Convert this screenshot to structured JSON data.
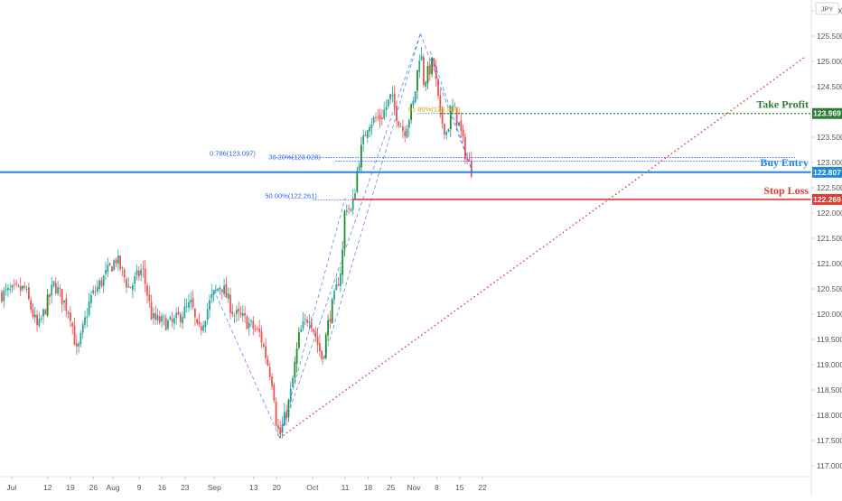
{
  "chart_data": {
    "type": "candlestick",
    "currency_badge": "JPY",
    "y_axis": {
      "ylim": [
        116.8,
        126.3
      ],
      "tick_labels": [
        "126.000",
        "125.500",
        "125.000",
        "124.500",
        "124.000",
        "123.500",
        "123.000",
        "122.500",
        "122.000",
        "121.500",
        "121.000",
        "120.500",
        "120.000",
        "119.500",
        "119.000",
        "118.500",
        "118.000",
        "117.500",
        "117.000"
      ]
    },
    "x_axis": {
      "tick_labels": [
        "Jul",
        "12",
        "19",
        "26",
        "Aug",
        "9",
        "16",
        "23",
        "Sep",
        "13",
        "20",
        "Oct",
        "11",
        "18",
        "25",
        "Nov",
        "8",
        "15",
        "22"
      ]
    },
    "price_tags": [
      {
        "label": "123.969",
        "color": "#2e7d32"
      },
      {
        "label": "122.807",
        "color": "#1e88e5"
      },
      {
        "label": "122.269",
        "color": "#e53935"
      }
    ],
    "annotations": {
      "take_profit": "Take Profit",
      "buy_entry": "Buy Entry",
      "stop_loss": "Stop Loss"
    },
    "fib_labels": [
      {
        "text": "0.786(123.097)",
        "value": 123.097
      },
      {
        "text": "38.20%(123.028)",
        "value": 123.028
      },
      {
        "text": "50.00%(122.261)",
        "value": 122.261
      },
      {
        "text": "61.80%(123.969)",
        "value": 123.969
      }
    ],
    "levels": {
      "take_profit": 123.969,
      "buy_entry": 122.807,
      "stop_loss": 122.269
    },
    "colors": {
      "up": "#26a69a",
      "up_strong": "#1b8f2a",
      "down": "#ef5350",
      "blue": "#1e88e5",
      "green": "#2e7d32",
      "red": "#e53935",
      "pattern": "#2962ff"
    },
    "price_path": [
      {
        "date": "2021-06-28",
        "price": 120.4
      },
      {
        "date": "2021-07-05",
        "price": 120.5
      },
      {
        "date": "2021-07-09",
        "price": 119.7
      },
      {
        "date": "2021-07-14",
        "price": 120.6
      },
      {
        "date": "2021-07-19",
        "price": 120.0
      },
      {
        "date": "2021-07-21",
        "price": 119.2
      },
      {
        "date": "2021-07-25",
        "price": 120.3
      },
      {
        "date": "2021-07-28",
        "price": 120.6
      },
      {
        "date": "2021-08-02",
        "price": 121.1
      },
      {
        "date": "2021-08-06",
        "price": 120.5
      },
      {
        "date": "2021-08-10",
        "price": 120.9
      },
      {
        "date": "2021-08-13",
        "price": 119.9
      },
      {
        "date": "2021-08-19",
        "price": 119.8
      },
      {
        "date": "2021-08-25",
        "price": 120.2
      },
      {
        "date": "2021-08-27",
        "price": 119.6
      },
      {
        "date": "2021-08-31",
        "price": 120.3
      },
      {
        "date": "2021-09-03",
        "price": 120.6
      },
      {
        "date": "2021-09-07",
        "price": 120.0
      },
      {
        "date": "2021-09-10",
        "price": 119.9
      },
      {
        "date": "2021-09-15",
        "price": 119.6
      },
      {
        "date": "2021-09-19",
        "price": 118.6
      },
      {
        "date": "2021-09-20",
        "price": 117.8
      },
      {
        "date": "2021-09-21",
        "price": 117.6
      },
      {
        "date": "2021-09-24",
        "price": 118.3
      },
      {
        "date": "2021-09-27",
        "price": 119.6
      },
      {
        "date": "2021-09-30",
        "price": 120.0
      },
      {
        "date": "2021-10-04",
        "price": 119.1
      },
      {
        "date": "2021-10-06",
        "price": 119.9
      },
      {
        "date": "2021-10-08",
        "price": 120.4
      },
      {
        "date": "2021-10-10",
        "price": 121.0
      },
      {
        "date": "2021-10-11",
        "price": 122.2
      },
      {
        "date": "2021-10-13",
        "price": 122.0
      },
      {
        "date": "2021-10-15",
        "price": 123.0
      },
      {
        "date": "2021-10-18",
        "price": 123.8
      },
      {
        "date": "2021-10-22",
        "price": 123.9
      },
      {
        "date": "2021-10-25",
        "price": 124.3
      },
      {
        "date": "2021-10-27",
        "price": 123.9
      },
      {
        "date": "2021-10-29",
        "price": 123.6
      },
      {
        "date": "2021-11-01",
        "price": 124.2
      },
      {
        "date": "2021-11-03",
        "price": 125.3
      },
      {
        "date": "2021-11-04",
        "price": 124.6
      },
      {
        "date": "2021-11-07",
        "price": 125.0
      },
      {
        "date": "2021-11-09",
        "price": 123.9
      },
      {
        "date": "2021-11-11",
        "price": 123.6
      },
      {
        "date": "2021-11-13",
        "price": 124.1
      },
      {
        "date": "2021-11-15",
        "price": 123.7
      },
      {
        "date": "2021-11-17",
        "price": 123.1
      },
      {
        "date": "2021-11-19",
        "price": 122.8
      }
    ]
  }
}
